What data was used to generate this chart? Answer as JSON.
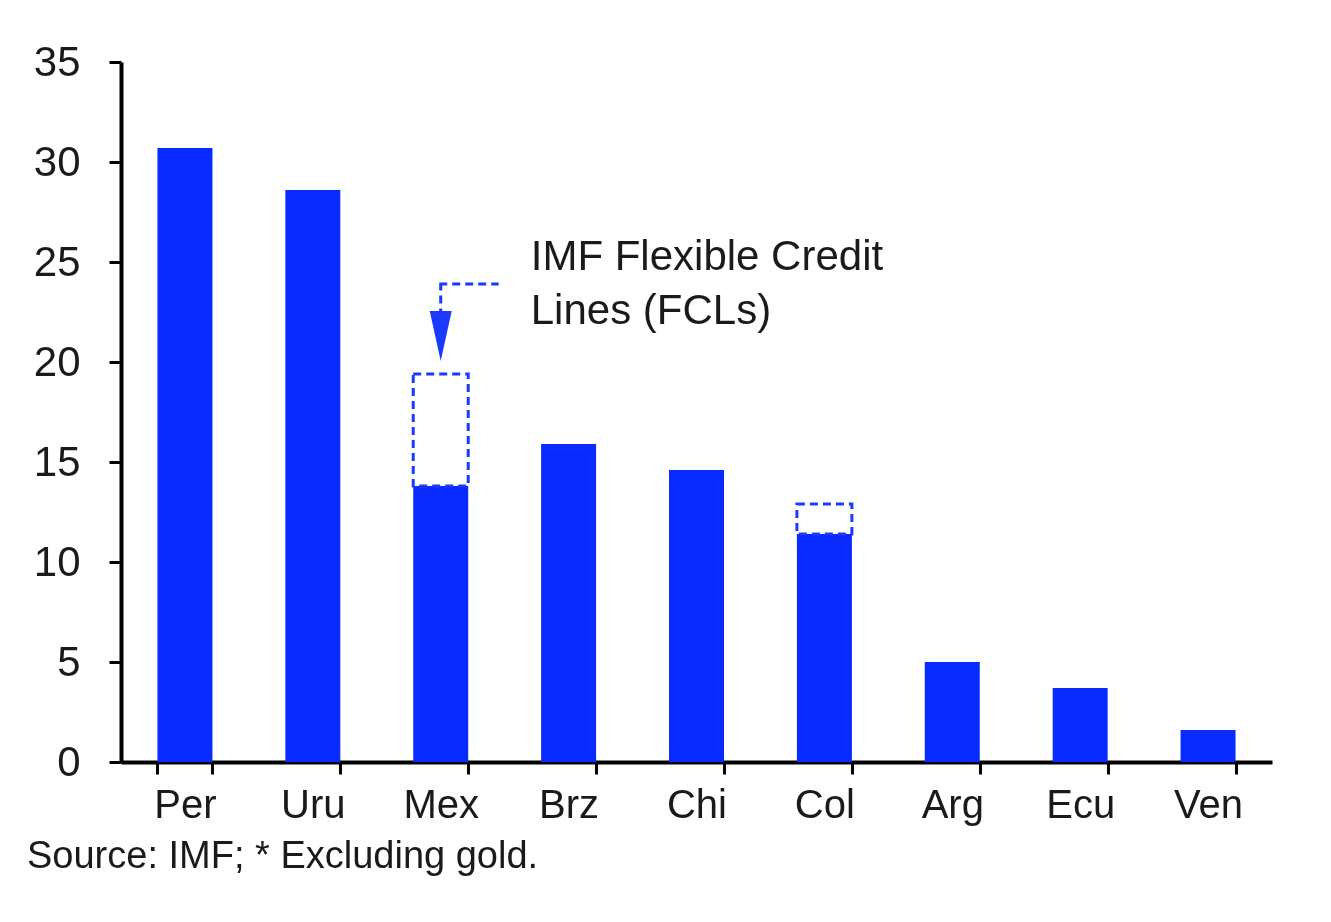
{
  "chart_data": {
    "type": "bar",
    "categories": [
      "Per",
      "Uru",
      "Mex",
      "Brz",
      "Chi",
      "Col",
      "Arg",
      "Ecu",
      "Ven"
    ],
    "series": [
      {
        "color": "#0a2bff",
        "values": [
          30.7,
          28.6,
          13.8,
          15.9,
          14.6,
          11.4,
          5.0,
          3.7,
          1.6
        ]
      },
      {
        "color": "#1a3aff",
        "line_style": "dashed",
        "values": [
          null,
          null,
          5.6,
          null,
          null,
          1.5,
          null,
          null,
          null
        ]
      }
    ],
    "stacked": true,
    "ylim": [
      0,
      35
    ],
    "yticks": [
      0,
      5,
      10,
      15,
      20,
      25,
      30,
      35
    ],
    "annotations": [
      {
        "text": "IMF Flexible Credit Lines (FCLs)",
        "x": "Mex",
        "y": 19.4
      },
      "Source: IMF; * Excluding gold."
    ]
  }
}
